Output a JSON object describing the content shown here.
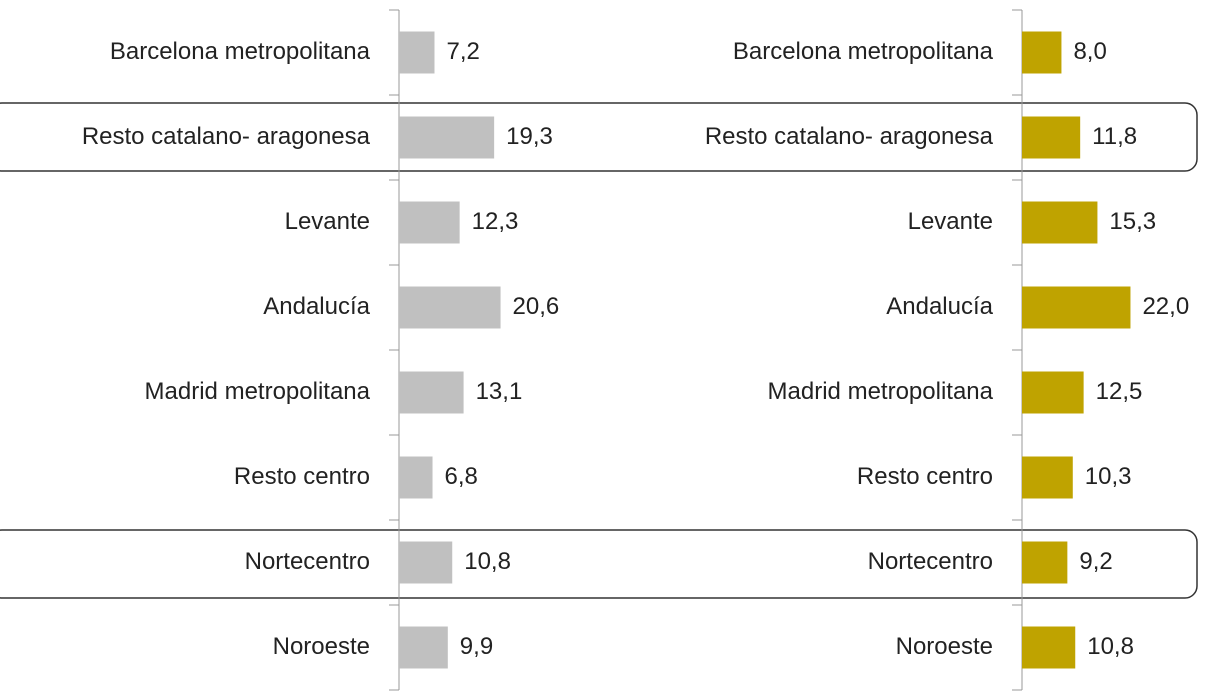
{
  "chart_data": [
    {
      "type": "bar",
      "orientation": "horizontal",
      "color": "#c0c0c0",
      "categories": [
        "Barcelona metropolitana",
        "Resto catalano- aragonesa",
        "Levante",
        "Andalucía",
        "Madrid metropolitana",
        "Resto centro",
        "Nortecentro",
        "Noroeste"
      ],
      "values": [
        7.2,
        19.3,
        12.3,
        20.6,
        13.1,
        6.8,
        10.8,
        9.9
      ],
      "value_labels": [
        "7,2",
        "19,3",
        "12,3",
        "20,6",
        "13,1",
        "6,8",
        "10,8",
        "9,9"
      ]
    },
    {
      "type": "bar",
      "orientation": "horizontal",
      "color": "#bfa300",
      "categories": [
        "Barcelona metropolitana",
        "Resto catalano- aragonesa",
        "Levante",
        "Andalucía",
        "Madrid metropolitana",
        "Resto centro",
        "Nortecentro",
        "Noroeste"
      ],
      "values": [
        8.0,
        11.8,
        15.3,
        22.0,
        12.5,
        10.3,
        9.2,
        10.8
      ],
      "value_labels": [
        "8,0",
        "11,8",
        "15,3",
        "22,0",
        "12,5",
        "10,3",
        "9,2",
        "10,8"
      ]
    }
  ]
}
